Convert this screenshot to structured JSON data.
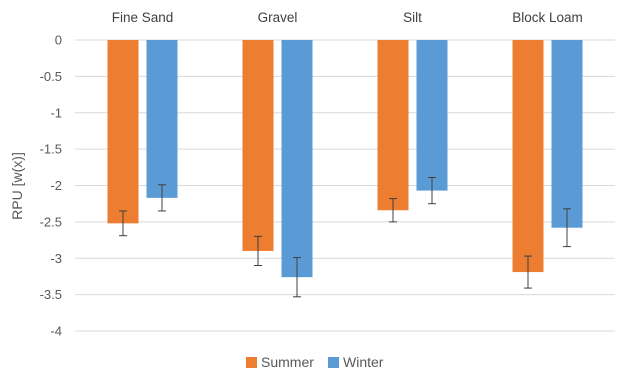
{
  "chart_data": {
    "type": "bar",
    "categories": [
      "Fine Sand",
      "Gravel",
      "Silt",
      "Block Loam"
    ],
    "series": [
      {
        "name": "Summer",
        "color": "#ED7D31",
        "values": [
          -2.52,
          -2.9,
          -2.34,
          -3.19
        ],
        "errors": [
          0.17,
          0.2,
          0.16,
          0.22
        ]
      },
      {
        "name": "Winter",
        "color": "#5B9BD5",
        "values": [
          -2.17,
          -3.26,
          -2.07,
          -2.58
        ],
        "errors": [
          0.18,
          0.27,
          0.18,
          0.26
        ]
      }
    ],
    "ylabel": "RPU [w(x)]",
    "xlabel": "",
    "ylim": [
      -4,
      0
    ],
    "yticks": [
      0,
      -0.5,
      -1,
      -1.5,
      -2,
      -2.5,
      -3,
      -3.5,
      -4
    ],
    "yticklabels": [
      "0",
      "-0.5",
      "-1",
      "-1.5",
      "-2",
      "-2.5",
      "-3",
      "-3.5",
      "-4"
    ],
    "category_axis_position": "top",
    "grid": true,
    "gridline_color": "#D9D9D9",
    "legend_position": "bottom"
  }
}
